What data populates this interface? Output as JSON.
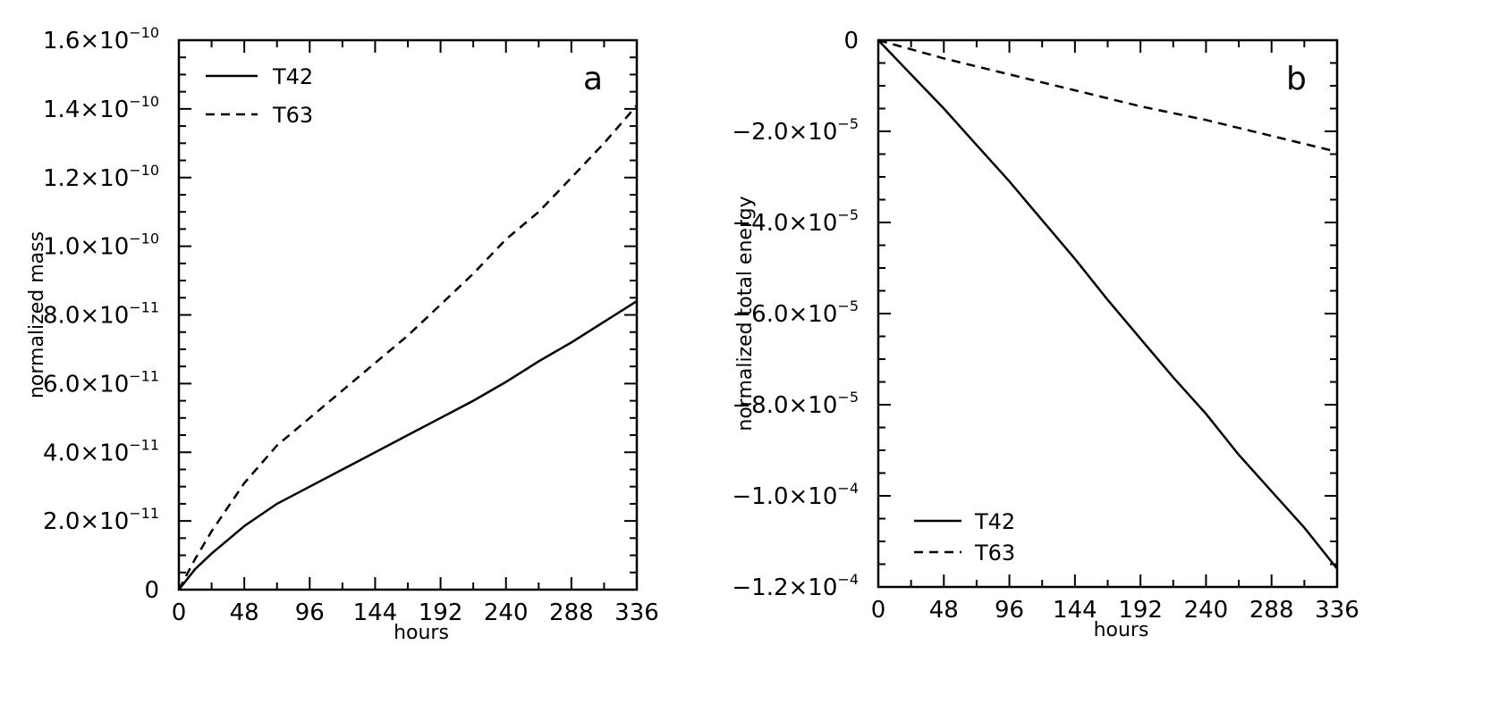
{
  "chart_data": [
    {
      "type": "line",
      "panel_label": "a",
      "xlabel": "hours",
      "ylabel": "normalized mass",
      "xlim": [
        0,
        336
      ],
      "ylim": [
        0,
        1.6e-10
      ],
      "x_ticks": [
        0,
        48,
        96,
        144,
        192,
        240,
        288,
        336
      ],
      "y_ticks": [
        {
          "value": 0,
          "mant": "0",
          "exp": ""
        },
        {
          "value": 2e-11,
          "mant": "2.0×10",
          "exp": "−11"
        },
        {
          "value": 4e-11,
          "mant": "4.0×10",
          "exp": "−11"
        },
        {
          "value": 6e-11,
          "mant": "6.0×10",
          "exp": "−11"
        },
        {
          "value": 8e-11,
          "mant": "8.0×10",
          "exp": "−11"
        },
        {
          "value": 1e-10,
          "mant": "1.0×10",
          "exp": "−10"
        },
        {
          "value": 1.2e-10,
          "mant": "1.2×10",
          "exp": "−10"
        },
        {
          "value": 1.4e-10,
          "mant": "1.4×10",
          "exp": "−10"
        },
        {
          "value": 1.6e-10,
          "mant": "1.6×10",
          "exp": "−10"
        }
      ],
      "legend_position": "top-left",
      "series": [
        {
          "name": "T42",
          "style": "solid",
          "x": [
            0,
            12,
            24,
            48,
            72,
            96,
            120,
            144,
            168,
            192,
            216,
            240,
            264,
            288,
            312,
            336
          ],
          "y": [
            0,
            6e-12,
            1.05e-11,
            1.85e-11,
            2.5e-11,
            3e-11,
            3.5e-11,
            4e-11,
            4.5e-11,
            5e-11,
            5.5e-11,
            6.05e-11,
            6.65e-11,
            7.2e-11,
            7.8e-11,
            8.4e-11
          ]
        },
        {
          "name": "T63",
          "style": "dashed",
          "x": [
            0,
            12,
            24,
            48,
            72,
            96,
            120,
            144,
            168,
            192,
            216,
            240,
            264,
            288,
            312,
            336
          ],
          "y": [
            0,
            9e-12,
            1.7e-11,
            3.1e-11,
            4.2e-11,
            5e-11,
            5.8e-11,
            6.6e-11,
            7.4e-11,
            8.3e-11,
            9.2e-11,
            1.02e-10,
            1.1e-10,
            1.2e-10,
            1.3e-10,
            1.41e-10
          ]
        }
      ]
    },
    {
      "type": "line",
      "panel_label": "b",
      "xlabel": "hours",
      "ylabel": "normalized total energy",
      "xlim": [
        0,
        336
      ],
      "ylim": [
        -0.00012,
        0
      ],
      "x_ticks": [
        0,
        48,
        96,
        144,
        192,
        240,
        288,
        336
      ],
      "y_ticks": [
        {
          "value": 0,
          "mant": "0",
          "exp": ""
        },
        {
          "value": -2e-05,
          "mant": "−2.0×10",
          "exp": "−5"
        },
        {
          "value": -4e-05,
          "mant": "−4.0×10",
          "exp": "−5"
        },
        {
          "value": -6e-05,
          "mant": "−6.0×10",
          "exp": "−5"
        },
        {
          "value": -8e-05,
          "mant": "−8.0×10",
          "exp": "−5"
        },
        {
          "value": -0.0001,
          "mant": "−1.0×10",
          "exp": "−4"
        },
        {
          "value": -0.00012,
          "mant": "−1.2×10",
          "exp": "−4"
        }
      ],
      "legend_position": "bottom-left",
      "series": [
        {
          "name": "T42",
          "style": "solid",
          "x": [
            0,
            24,
            48,
            72,
            96,
            120,
            144,
            168,
            192,
            216,
            240,
            264,
            288,
            312,
            336
          ],
          "y": [
            0,
            -7.5e-06,
            -1.5e-05,
            -2.3e-05,
            -3.1e-05,
            -3.95e-05,
            -4.8e-05,
            -5.7e-05,
            -6.55e-05,
            -7.4e-05,
            -8.2e-05,
            -9.1e-05,
            -9.9e-05,
            -0.000107,
            -0.000116
          ]
        },
        {
          "name": "T63",
          "style": "dashed",
          "x": [
            0,
            48,
            96,
            144,
            192,
            240,
            288,
            336
          ],
          "y": [
            0,
            -4e-06,
            -7.5e-06,
            -1.1e-05,
            -1.45e-05,
            -1.75e-05,
            -2.1e-05,
            -2.45e-05
          ]
        }
      ]
    }
  ]
}
